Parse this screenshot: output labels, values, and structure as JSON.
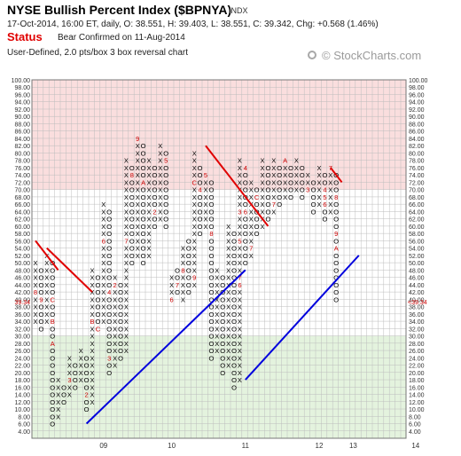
{
  "header": {
    "title": "NYSE Bullish Percent Index ($BPNYA)",
    "exchange": "INDX",
    "quote": "17-Oct-2014, 16:00 ET, daily, O: 38.551, H: 39.403, L: 38.551, C: 39.342, Chg: +0.568 (1.46%)",
    "status_label": "Status",
    "status_text": "Bear Confirmed on 11-Aug-2014",
    "method": "User-Defined, 2.0 pts/box 3 box reversal chart",
    "brand": "© StockCharts.com"
  },
  "colors": {
    "x_mark": "#000000",
    "o_mark": "#000000",
    "month_marker": "#cc0000",
    "resistance_line": "#e00000",
    "support_line": "#0000dd",
    "overbought_zone": "#fadede",
    "oversold_zone": "#e4f3de",
    "current_price": "#cc0000"
  },
  "chart_data": {
    "type": "point-and-figure",
    "box_size": 2,
    "reversal": 3,
    "y_range": [
      2,
      100
    ],
    "y_tick_labels": [
      "4.00",
      "6.00",
      "8.00",
      "10.00",
      "12.00",
      "14.00",
      "16.00",
      "18.00",
      "20.00",
      "22.00",
      "24.00",
      "26.00",
      "28.00",
      "30.00",
      "32.00",
      "34.00",
      "36.00",
      "38.00",
      "40.00",
      "42.00",
      "44.00",
      "46.00",
      "48.00",
      "50.00",
      "52.00",
      "54.00",
      "56.00",
      "58.00",
      "60.00",
      "62.00",
      "64.00",
      "66.00",
      "68.00",
      "70.00",
      "72.00",
      "74.00",
      "76.00",
      "78.00",
      "80.00",
      "82.00",
      "84.00",
      "86.00",
      "88.00",
      "90.00",
      "92.00",
      "94.00",
      "96.00",
      "98.00",
      "100.00"
    ],
    "overbought_zone": [
      70,
      100
    ],
    "oversold_zone": [
      2,
      30
    ],
    "current_value": 39.34,
    "current_label": "39.34",
    "current_arrow_label": "<39.34",
    "year_labels": [
      {
        "label": "09",
        "col": 12
      },
      {
        "label": "10",
        "col": 24
      },
      {
        "label": "11",
        "col": 37
      },
      {
        "label": "12",
        "col": 50
      },
      {
        "label": "13",
        "col": 56
      },
      {
        "label": "14",
        "col": 67
      }
    ],
    "columns": [
      {
        "t": "X",
        "lo": 34,
        "hi": 50,
        "m": {
          "42": "8"
        }
      },
      {
        "t": "O",
        "lo": 32,
        "hi": 48,
        "m": {
          "40": "9"
        }
      },
      {
        "t": "X",
        "lo": 34,
        "hi": 52,
        "m": {}
      },
      {
        "t": "O",
        "lo": 6,
        "hi": 50,
        "m": {
          "28": "A",
          "40": "C",
          "34": "B"
        }
      },
      {
        "t": "X",
        "lo": 8,
        "hi": 18,
        "m": {}
      },
      {
        "t": "O",
        "lo": 12,
        "hi": 16,
        "m": {}
      },
      {
        "t": "X",
        "lo": 14,
        "hi": 24,
        "m": {
          "18": "3"
        }
      },
      {
        "t": "O",
        "lo": 16,
        "hi": 22,
        "m": {}
      },
      {
        "t": "X",
        "lo": 18,
        "hi": 26,
        "m": {}
      },
      {
        "t": "O",
        "lo": 10,
        "hi": 24,
        "m": {
          "14": "2"
        }
      },
      {
        "t": "X",
        "lo": 12,
        "hi": 48,
        "m": {
          "34": "B"
        }
      },
      {
        "t": "O",
        "lo": 32,
        "hi": 46,
        "m": {
          "32": "C"
        }
      },
      {
        "t": "X",
        "lo": 34,
        "hi": 66,
        "m": {
          "56": "6"
        }
      },
      {
        "t": "O",
        "lo": 20,
        "hi": 64,
        "m": {
          "42": "4",
          "24": "3"
        }
      },
      {
        "t": "X",
        "lo": 22,
        "hi": 46,
        "m": {
          "44": "2"
        }
      },
      {
        "t": "O",
        "lo": 24,
        "hi": 44,
        "m": {}
      },
      {
        "t": "X",
        "lo": 26,
        "hi": 78,
        "m": {
          "56": "7"
        }
      },
      {
        "t": "O",
        "lo": 50,
        "hi": 76,
        "m": {
          "74": "8"
        }
      },
      {
        "t": "X",
        "lo": 52,
        "hi": 84,
        "m": {
          "84": "9"
        }
      },
      {
        "t": "O",
        "lo": 50,
        "hi": 82,
        "m": {
          "72": "A"
        }
      },
      {
        "t": "X",
        "lo": 52,
        "hi": 78,
        "m": {}
      },
      {
        "t": "O",
        "lo": 60,
        "hi": 76,
        "m": {
          "64": "2"
        }
      },
      {
        "t": "X",
        "lo": 62,
        "hi": 82,
        "m": {}
      },
      {
        "t": "O",
        "lo": 60,
        "hi": 80,
        "m": {
          "78": "5"
        }
      },
      {
        "t": "X",
        "lo": 40,
        "hi": 46,
        "m": {
          "40": "6"
        }
      },
      {
        "t": "O",
        "lo": 42,
        "hi": 48,
        "m": {
          "44": "7"
        }
      },
      {
        "t": "X",
        "lo": 40,
        "hi": 54,
        "m": {
          "48": "8"
        }
      },
      {
        "t": "O",
        "lo": 42,
        "hi": 56,
        "m": {}
      },
      {
        "t": "X",
        "lo": 44,
        "hi": 80,
        "m": {
          "46": "9",
          "72": "C"
        }
      },
      {
        "t": "O",
        "lo": 58,
        "hi": 76,
        "m": {
          "70": "4"
        }
      },
      {
        "t": "X",
        "lo": 60,
        "hi": 74,
        "m": {
          "74": "5"
        }
      },
      {
        "t": "O",
        "lo": 24,
        "hi": 72,
        "m": {
          "58": "8"
        }
      },
      {
        "t": "X",
        "lo": 26,
        "hi": 48,
        "m": {}
      },
      {
        "t": "O",
        "lo": 20,
        "hi": 46,
        "m": {}
      },
      {
        "t": "X",
        "lo": 22,
        "hi": 60,
        "m": {}
      },
      {
        "t": "O",
        "lo": 16,
        "hi": 58,
        "m": {}
      },
      {
        "t": "X",
        "lo": 18,
        "hi": 78,
        "m": {
          "64": "3",
          "56": "5",
          "44": "6",
          "46": "7"
        }
      },
      {
        "t": "O",
        "lo": 50,
        "hi": 76,
        "m": {
          "76": "4",
          "64": "6"
        }
      },
      {
        "t": "X",
        "lo": 52,
        "hi": 72,
        "m": {
          "54": "7"
        }
      },
      {
        "t": "O",
        "lo": 58,
        "hi": 70,
        "m": {
          "68": "C"
        }
      },
      {
        "t": "X",
        "lo": 60,
        "hi": 78,
        "m": {}
      },
      {
        "t": "O",
        "lo": 62,
        "hi": 76,
        "m": {
          "78": "2"
        }
      },
      {
        "t": "X",
        "lo": 64,
        "hi": 78,
        "m": {
          "66": "7"
        }
      },
      {
        "t": "O",
        "lo": 66,
        "hi": 76,
        "m": {}
      },
      {
        "t": "X",
        "lo": 68,
        "hi": 78,
        "m": {
          "78": "A"
        }
      },
      {
        "t": "O",
        "lo": 68,
        "hi": 76,
        "m": {}
      },
      {
        "t": "X",
        "lo": 70,
        "hi": 78,
        "m": {}
      },
      {
        "t": "O",
        "lo": 68,
        "hi": 76,
        "m": {}
      },
      {
        "t": "X",
        "lo": 70,
        "hi": 74,
        "m": {
          "70": "3"
        }
      },
      {
        "t": "O",
        "lo": 64,
        "hi": 72,
        "m": {}
      },
      {
        "t": "X",
        "lo": 66,
        "hi": 76,
        "m": {}
      },
      {
        "t": "O",
        "lo": 62,
        "hi": 74,
        "m": {
          "70": "4",
          "68": "5",
          "66": "6"
        }
      },
      {
        "t": "X",
        "lo": 64,
        "hi": 76,
        "m": {
          "76": "7"
        }
      },
      {
        "t": "O",
        "lo": 40,
        "hi": 74,
        "m": {
          "68": "8",
          "58": "9",
          "54": "A"
        }
      }
    ],
    "trend_lines": [
      {
        "kind": "resistance",
        "from": {
          "col": 0,
          "y": 56
        },
        "to": {
          "col": 4,
          "y": 48
        }
      },
      {
        "kind": "resistance",
        "from": {
          "col": 2,
          "y": 54
        },
        "to": {
          "col": 10,
          "y": 42
        }
      },
      {
        "kind": "support",
        "from": {
          "col": 9,
          "y": 6
        },
        "to": {
          "col": 37,
          "y": 48
        }
      },
      {
        "kind": "resistance",
        "from": {
          "col": 30,
          "y": 82
        },
        "to": {
          "col": 41,
          "y": 60
        }
      },
      {
        "kind": "support",
        "from": {
          "col": 37,
          "y": 18
        },
        "to": {
          "col": 57,
          "y": 52
        }
      },
      {
        "kind": "resistance",
        "from": {
          "col": 52,
          "y": 76
        },
        "to": {
          "col": 54,
          "y": 72
        }
      }
    ]
  }
}
